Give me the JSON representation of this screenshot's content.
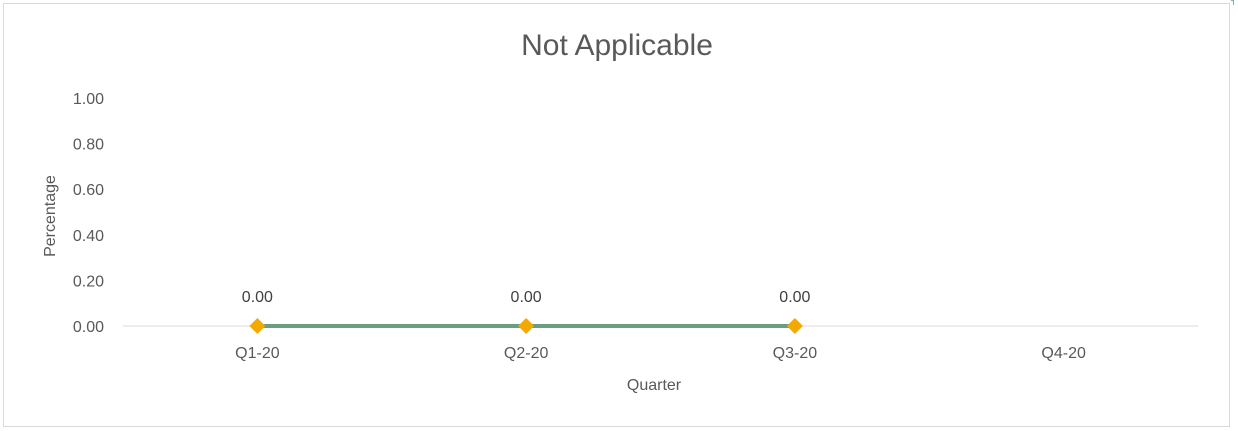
{
  "chart_data": {
    "type": "line",
    "title": "Not Applicable",
    "xlabel": "Quarter",
    "ylabel": "Percentage",
    "categories": [
      "Q1-20",
      "Q2-20",
      "Q3-20",
      "Q4-20"
    ],
    "series": [
      {
        "values": [
          0.0,
          0.0,
          0.0,
          null
        ],
        "data_labels": [
          "0.00",
          "0.00",
          "0.00",
          null
        ]
      }
    ],
    "ylim": [
      0,
      1
    ],
    "yticks": [
      "0.00",
      "0.20",
      "0.40",
      "0.60",
      "0.80",
      "1.00"
    ],
    "grid": false,
    "legend": "none",
    "colors": {
      "line": "#6a9e81",
      "marker": "#f4a900",
      "axis": "#d9d9d9",
      "text": "#595959"
    }
  }
}
